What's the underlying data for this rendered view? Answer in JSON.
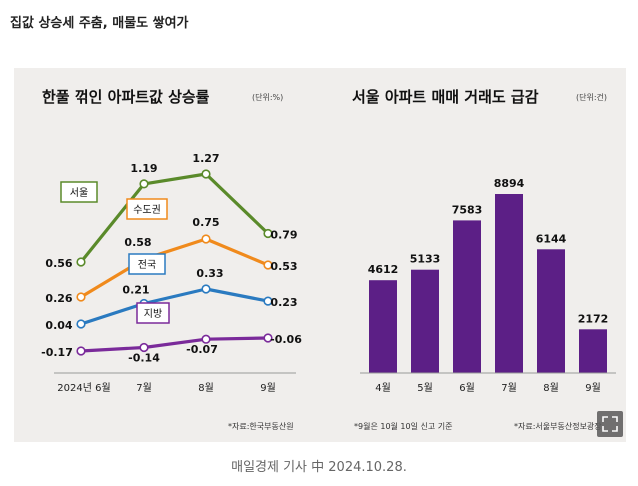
{
  "headline": "집값 상승세 주춤, 매물도 쌓여가",
  "caption": "매일경제 기사 中  2024.10.28.",
  "chart_data": [
    {
      "type": "line",
      "title": "한풀 꺾인 아파트값 상승률",
      "unit": "(단위:%)",
      "source": "*자료:한국부동산원",
      "categories": [
        "2024년 6월",
        "7월",
        "8월",
        "9월"
      ],
      "series": [
        {
          "name": "서울",
          "color": "#5a8a2a",
          "values": [
            0.56,
            1.19,
            1.27,
            0.79
          ],
          "labels": [
            "0.56",
            "1.19",
            "1.27",
            "0.79"
          ]
        },
        {
          "name": "수도권",
          "color": "#f08a1c",
          "values": [
            0.26,
            0.58,
            0.75,
            0.53
          ],
          "labels": [
            "0.26",
            "0.58",
            "0.75",
            "0.53"
          ]
        },
        {
          "name": "전국",
          "color": "#2a7ac0",
          "values": [
            0.04,
            0.21,
            0.33,
            0.23
          ],
          "labels": [
            "0.04",
            "0.21",
            "0.33",
            "0.23"
          ]
        },
        {
          "name": "지방",
          "color": "#7a2a9a",
          "values": [
            -0.17,
            -0.14,
            -0.07,
            -0.06
          ],
          "labels": [
            "-0.17",
            "-0.14",
            "-0.07",
            "-0.06"
          ]
        }
      ]
    },
    {
      "type": "bar",
      "title": "서울 아파트 매매 거래도 급감",
      "unit": "(단위:건)",
      "source_left": "*9월은 10월 10일 신고 기준",
      "source_right": "*자료:서울부동산정보광장",
      "categories": [
        "4월",
        "5월",
        "6월",
        "7월",
        "8월",
        "9월"
      ],
      "values": [
        4612,
        5133,
        7583,
        8894,
        6144,
        2172
      ],
      "color": "#5c1f86"
    }
  ]
}
